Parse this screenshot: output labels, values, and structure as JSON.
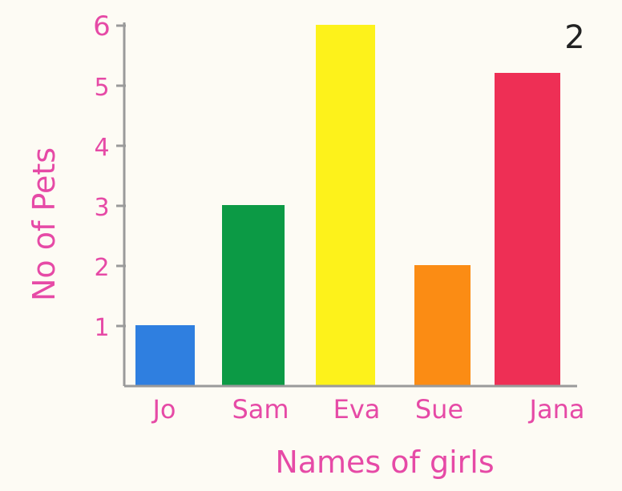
{
  "corner_mark": "2",
  "chart_data": {
    "type": "bar",
    "title": "",
    "xlabel": "Names of girls",
    "ylabel": "No of Pets",
    "categories": [
      "Jo",
      "Sam",
      "Eva",
      "Sue",
      "Jana"
    ],
    "values": [
      1,
      3,
      6,
      2,
      5.2
    ],
    "colors": [
      "#2f7fe0",
      "#0c9a45",
      "#fdf21b",
      "#fb8c14",
      "#ee2f55"
    ],
    "yticks": [
      "1",
      "2",
      "3",
      "4",
      "5",
      "6"
    ],
    "ylim": [
      0,
      6
    ],
    "grid": false,
    "legend": "none",
    "text_color": "#e64aa6",
    "axis_color": "#9a9a9a"
  }
}
